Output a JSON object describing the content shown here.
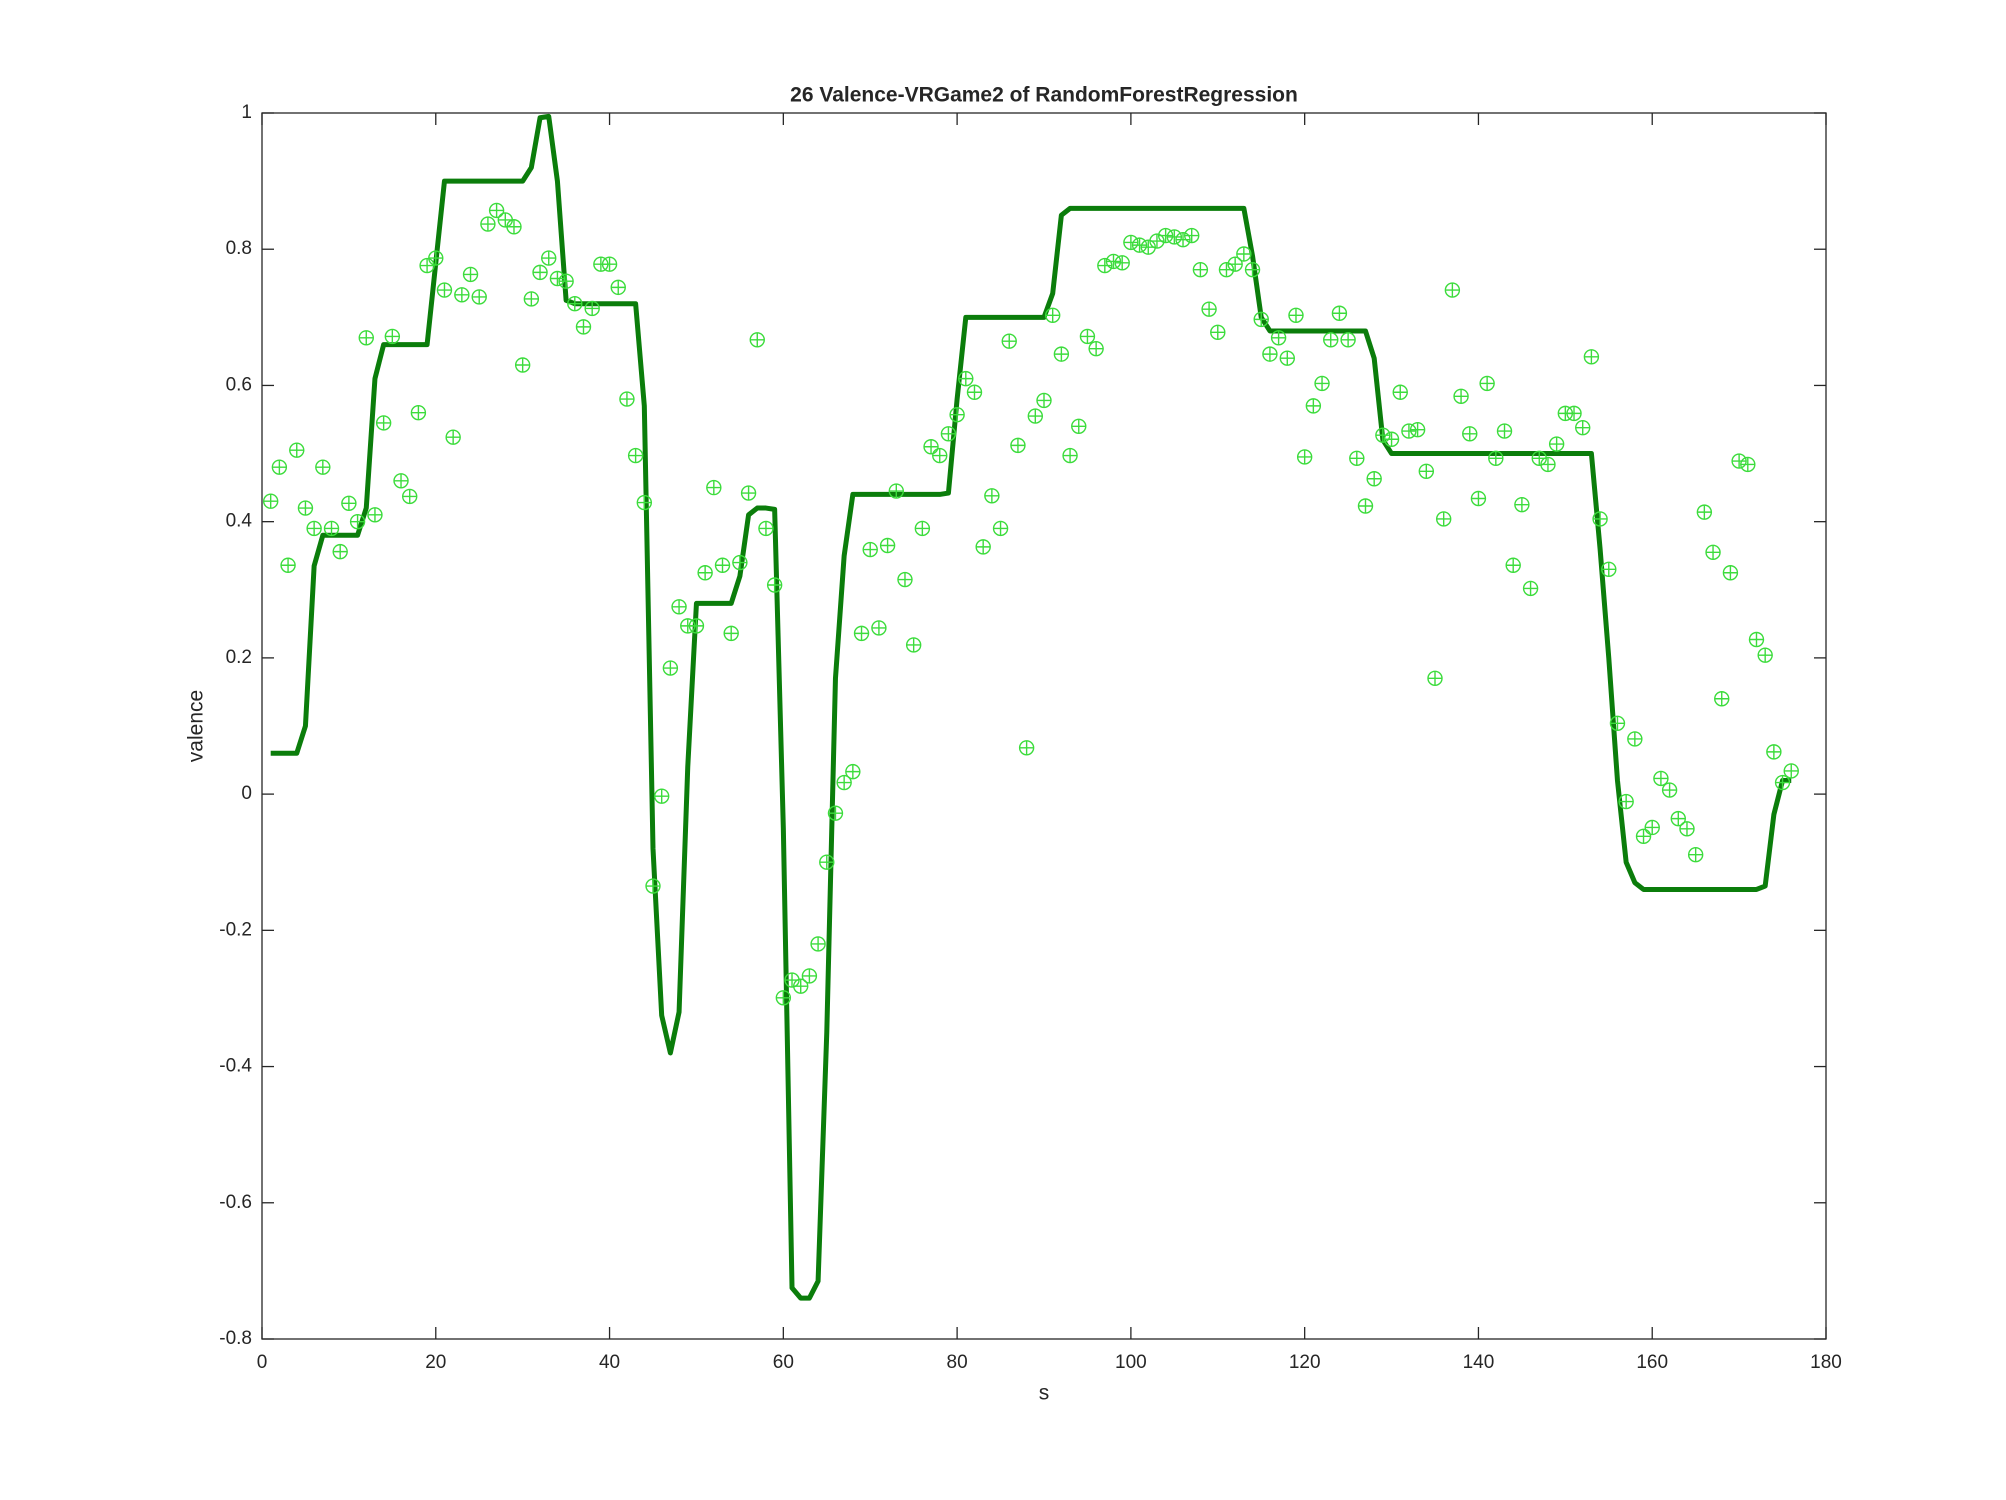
{
  "chart_data": {
    "type": "line",
    "title": "26 Valence-VRGame2 of RandomForestRegression",
    "x_label": "s",
    "y_label": "valence",
    "xlim": [
      0,
      180
    ],
    "ylim": [
      -0.8,
      1
    ],
    "xticks": [
      0,
      20,
      40,
      60,
      80,
      100,
      120,
      140,
      160,
      180
    ],
    "yticks": [
      -0.8,
      -0.6,
      -0.4,
      -0.2,
      0,
      0.2,
      0.4,
      0.6,
      0.8,
      1
    ],
    "grid": false,
    "x": [
      1,
      2,
      3,
      4,
      5,
      6,
      7,
      8,
      9,
      10,
      11,
      12,
      13,
      14,
      15,
      16,
      17,
      18,
      19,
      20,
      21,
      22,
      23,
      24,
      25,
      26,
      27,
      28,
      29,
      30,
      31,
      32,
      33,
      34,
      35,
      36,
      37,
      38,
      39,
      40,
      41,
      42,
      43,
      44,
      45,
      46,
      47,
      48,
      49,
      50,
      51,
      52,
      53,
      54,
      55,
      56,
      57,
      58,
      59,
      60,
      61,
      62,
      63,
      64,
      65,
      66,
      67,
      68,
      69,
      70,
      71,
      72,
      73,
      74,
      75,
      76,
      77,
      78,
      79,
      80,
      81,
      82,
      83,
      84,
      85,
      86,
      87,
      88,
      89,
      90,
      91,
      92,
      93,
      94,
      95,
      96,
      97,
      98,
      99,
      100,
      101,
      102,
      103,
      104,
      105,
      106,
      107,
      108,
      109,
      110,
      111,
      112,
      113,
      114,
      115,
      116,
      117,
      118,
      119,
      120,
      121,
      122,
      123,
      124,
      125,
      126,
      127,
      128,
      129,
      130,
      131,
      132,
      133,
      134,
      135,
      136,
      137,
      138,
      139,
      140,
      141,
      142,
      143,
      144,
      145,
      146,
      147,
      148,
      149,
      150,
      151,
      152,
      153,
      154,
      155,
      156,
      157,
      158,
      159,
      160,
      161,
      162,
      163,
      164,
      165,
      166,
      167,
      168,
      169,
      170,
      171,
      172,
      173,
      174,
      175,
      176
    ],
    "series": [
      {
        "style": "line",
        "color": "#0b7d0b",
        "values": [
          0.06,
          0.06,
          0.06,
          0.06,
          0.1,
          0.335,
          0.38,
          0.38,
          0.38,
          0.38,
          0.38,
          0.42,
          0.61,
          0.66,
          0.66,
          0.66,
          0.66,
          0.66,
          0.66,
          0.78,
          0.9,
          0.9,
          0.9,
          0.9,
          0.9,
          0.9,
          0.9,
          0.9,
          0.9,
          0.9,
          0.92,
          0.993,
          0.995,
          0.9,
          0.725,
          0.72,
          0.72,
          0.72,
          0.72,
          0.72,
          0.72,
          0.72,
          0.72,
          0.57,
          -0.08,
          -0.325,
          -0.38,
          -0.32,
          0.04,
          0.28,
          0.28,
          0.28,
          0.28,
          0.28,
          0.32,
          0.41,
          0.42,
          0.42,
          0.418,
          -0.05,
          -0.725,
          -0.74,
          -0.74,
          -0.715,
          -0.35,
          0.17,
          0.35,
          0.44,
          0.44,
          0.44,
          0.44,
          0.44,
          0.44,
          0.44,
          0.44,
          0.44,
          0.44,
          0.44,
          0.442,
          0.58,
          0.7,
          0.7,
          0.7,
          0.7,
          0.7,
          0.7,
          0.7,
          0.7,
          0.7,
          0.7,
          0.735,
          0.85,
          0.86,
          0.86,
          0.86,
          0.86,
          0.86,
          0.86,
          0.86,
          0.86,
          0.86,
          0.86,
          0.86,
          0.86,
          0.86,
          0.86,
          0.86,
          0.86,
          0.86,
          0.86,
          0.86,
          0.86,
          0.86,
          0.79,
          0.7,
          0.68,
          0.68,
          0.68,
          0.68,
          0.68,
          0.68,
          0.68,
          0.68,
          0.68,
          0.68,
          0.68,
          0.68,
          0.64,
          0.52,
          0.5,
          0.5,
          0.5,
          0.5,
          0.5,
          0.5,
          0.5,
          0.5,
          0.5,
          0.5,
          0.5,
          0.5,
          0.5,
          0.5,
          0.5,
          0.5,
          0.5,
          0.5,
          0.5,
          0.5,
          0.5,
          0.5,
          0.5,
          0.5,
          0.36,
          0.2,
          0.02,
          -0.1,
          -0.13,
          -0.14,
          -0.14,
          -0.14,
          -0.14,
          -0.14,
          -0.14,
          -0.14,
          -0.14,
          -0.14,
          -0.14,
          -0.14,
          -0.14,
          -0.14,
          -0.14,
          -0.135,
          -0.03,
          0.02,
          0.02
        ]
      },
      {
        "style": "marker",
        "color": "#3cdc3c",
        "values": [
          0.43,
          0.48,
          0.336,
          0.505,
          0.42,
          0.39,
          0.48,
          0.39,
          0.356,
          0.427,
          0.4,
          0.67,
          0.41,
          0.545,
          0.672,
          0.46,
          0.437,
          0.56,
          0.776,
          0.787,
          0.74,
          0.524,
          0.733,
          0.763,
          0.73,
          0.837,
          0.857,
          0.843,
          0.833,
          0.63,
          0.727,
          0.766,
          0.787,
          0.757,
          0.753,
          0.72,
          0.686,
          0.713,
          0.778,
          0.778,
          0.744,
          0.58,
          0.497,
          0.428,
          -0.135,
          -0.003,
          0.185,
          0.275,
          0.247,
          0.247,
          0.325,
          0.45,
          0.336,
          0.236,
          0.34,
          0.442,
          0.667,
          0.39,
          0.307,
          -0.299,
          -0.273,
          -0.282,
          -0.267,
          -0.22,
          -0.1,
          -0.028,
          0.017,
          0.033,
          0.236,
          0.359,
          0.244,
          0.365,
          0.445,
          0.315,
          0.219,
          0.39,
          0.51,
          0.497,
          0.529,
          0.557,
          0.61,
          0.59,
          0.363,
          0.438,
          0.39,
          0.665,
          0.512,
          0.068,
          0.555,
          0.578,
          0.703,
          0.646,
          0.497,
          0.54,
          0.672,
          0.654,
          0.776,
          0.782,
          0.78,
          0.81,
          0.806,
          0.803,
          0.812,
          0.82,
          0.818,
          0.814,
          0.82,
          0.77,
          0.712,
          0.678,
          0.77,
          0.778,
          0.793,
          0.77,
          0.697,
          0.646,
          0.67,
          0.64,
          0.703,
          0.495,
          0.57,
          0.603,
          0.667,
          0.706,
          0.667,
          0.493,
          0.423,
          0.463,
          0.527,
          0.521,
          0.59,
          0.533,
          0.535,
          0.474,
          0.17,
          0.404,
          0.74,
          0.584,
          0.529,
          0.434,
          0.603,
          0.493,
          0.533,
          0.336,
          0.425,
          0.302,
          0.493,
          0.484,
          0.514,
          0.559,
          0.559,
          0.538,
          0.642,
          0.404,
          0.33,
          0.104,
          -0.011,
          0.081,
          -0.062,
          -0.049,
          0.023,
          0.006,
          -0.036,
          -0.051,
          -0.089,
          0.414,
          0.355,
          0.14,
          0.325,
          0.489,
          0.484,
          0.227,
          0.204,
          0.062,
          0.017,
          0.034
        ]
      }
    ]
  }
}
